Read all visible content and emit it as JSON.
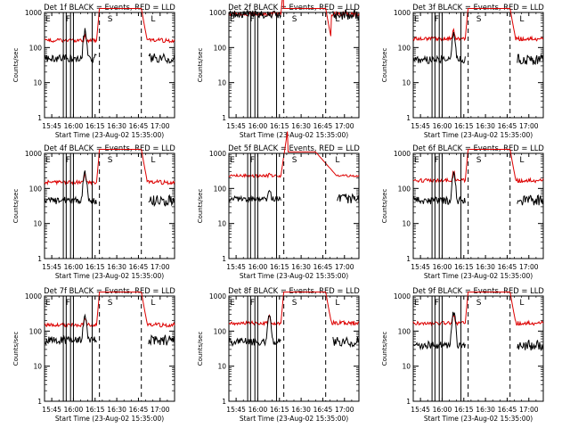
{
  "chart_data": {
    "type": "line",
    "layout": "3x3 grid",
    "y_scale": "log",
    "ylim": [
      1,
      1000
    ],
    "xlim": [
      "15:40",
      "17:10"
    ],
    "ylabel": "Counts/sec",
    "xlabel": "Start Time (23-Aug-02 15:35:00)",
    "x_ticks": [
      "15:45",
      "16:00",
      "16:15",
      "16:30",
      "16:45",
      "17:00"
    ],
    "y_ticks": [
      "1",
      "10",
      "100",
      "1000"
    ],
    "series_colors": {
      "events": "#000000",
      "lld": "#dd0000"
    },
    "marker_letters": {
      "E": "15:40",
      "F": "15:54",
      "S": "16:23",
      "L": "16:53"
    },
    "solid_lines": [
      "15:53",
      "15:55",
      "15:58",
      "16:00",
      "16:13"
    ],
    "dashed_lines": [
      "16:18",
      "16:47"
    ],
    "dotted_lines": [
      "15:40",
      "17:10"
    ],
    "panels": [
      {
        "title": "Det 1f BLACK = Events, RED = LLD",
        "events_level": 50,
        "lld_level": 160,
        "events_peak": 300,
        "lld_peak": 220,
        "saturated": false
      },
      {
        "title": "Det 2f BLACK = Events, RED = LLD",
        "events_level": 880,
        "lld_level": 900,
        "events_peak": 880,
        "lld_peak": 900,
        "saturated": false
      },
      {
        "title": "Det 3f BLACK = Events, RED = LLD",
        "events_level": 45,
        "lld_level": 180,
        "events_peak": 250,
        "lld_peak": 300,
        "saturated": false
      },
      {
        "title": "Det 4f BLACK = Events, RED = LLD",
        "events_level": 45,
        "lld_level": 150,
        "events_peak": 300,
        "lld_peak": 250,
        "saturated": false
      },
      {
        "title": "Det 5f BLACK = Events, RED = LLD",
        "events_level": 50,
        "lld_level": 230,
        "events_peak": 100,
        "lld_peak": 260,
        "saturated": true
      },
      {
        "title": "Det 6f BLACK = Events, RED = LLD",
        "events_level": 45,
        "lld_level": 170,
        "events_peak": 250,
        "lld_peak": 300,
        "saturated": false
      },
      {
        "title": "Det 7f BLACK = Events, RED = LLD",
        "events_level": 55,
        "lld_level": 150,
        "events_peak": 250,
        "lld_peak": 250,
        "saturated": false
      },
      {
        "title": "Det 8f BLACK = Events, RED = LLD",
        "events_level": 50,
        "lld_level": 170,
        "events_peak": 300,
        "lld_peak": 260,
        "saturated": false
      },
      {
        "title": "Det 9f BLACK = Events, RED = LLD",
        "events_level": 40,
        "lld_level": 170,
        "events_peak": 350,
        "lld_peak": 300,
        "saturated": false
      }
    ]
  }
}
